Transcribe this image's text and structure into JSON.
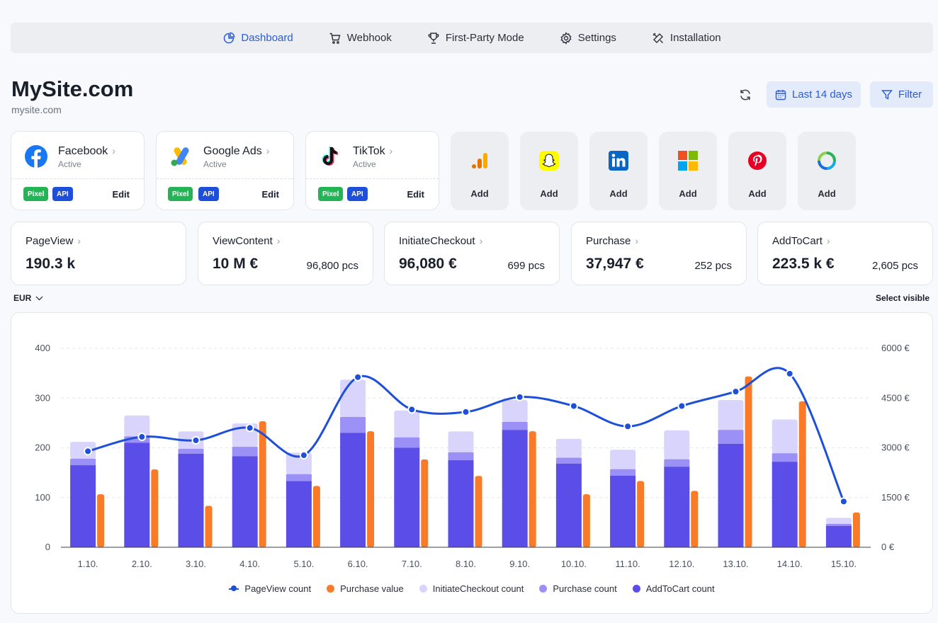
{
  "nav": {
    "items": [
      {
        "label": "Dashboard",
        "icon": "pie-chart-icon",
        "active": true
      },
      {
        "label": "Webhook",
        "icon": "cart-icon"
      },
      {
        "label": "First-Party Mode",
        "icon": "trophy-icon"
      },
      {
        "label": "Settings",
        "icon": "gear-icon"
      },
      {
        "label": "Installation",
        "icon": "tools-icon"
      }
    ]
  },
  "site": {
    "title": "MySite.com",
    "url": "mysite.com"
  },
  "toolbar": {
    "date_range": "Last 14 days",
    "filter": "Filter"
  },
  "integrations": [
    {
      "name": "Facebook",
      "status": "Active",
      "badges": [
        "Pixel",
        "API"
      ],
      "action": "Edit"
    },
    {
      "name": "Google Ads",
      "status": "Active",
      "badges": [
        "Pixel",
        "API"
      ],
      "action": "Edit"
    },
    {
      "name": "TikTok",
      "status": "Active",
      "badges": [
        "Pixel",
        "API"
      ],
      "action": "Edit"
    }
  ],
  "add_integrations": [
    {
      "icon": "google-analytics-icon",
      "label": "Add"
    },
    {
      "icon": "snapchat-icon",
      "label": "Add"
    },
    {
      "icon": "linkedin-icon",
      "label": "Add"
    },
    {
      "icon": "microsoft-icon",
      "label": "Add"
    },
    {
      "icon": "pinterest-icon",
      "label": "Add"
    },
    {
      "icon": "ring-logo-icon",
      "label": "Add"
    }
  ],
  "metrics": [
    {
      "name": "PageView",
      "value": "190.3 k",
      "pcs": ""
    },
    {
      "name": "ViewContent",
      "value": "10 M €",
      "pcs": "96,800 pcs"
    },
    {
      "name": "InitiateCheckout",
      "value": "96,080 €",
      "pcs": "699 pcs"
    },
    {
      "name": "Purchase",
      "value": "37,947 €",
      "pcs": "252 pcs"
    },
    {
      "name": "AddToCart",
      "value": "223.5 k €",
      "pcs": "2,605 pcs"
    }
  ],
  "chart_controls": {
    "currency": "EUR",
    "select_visible": "Select visible"
  },
  "chart_data": {
    "type": "bar",
    "categories": [
      "1.10.",
      "2.10.",
      "3.10.",
      "4.10.",
      "5.10.",
      "6.10.",
      "7.10.",
      "8.10.",
      "9.10.",
      "10.10.",
      "11.10.",
      "12.10.",
      "13.10.",
      "14.10.",
      "15.10."
    ],
    "y_left": {
      "ticks": [
        "0",
        "100",
        "200",
        "300",
        "400"
      ],
      "range": [
        0,
        400
      ]
    },
    "y_right": {
      "ticks": [
        "0 €",
        "1500 €",
        "3000 €",
        "4500 €",
        "6000 €"
      ],
      "range": [
        0,
        6000
      ]
    },
    "grid": true,
    "legend_position": "bottom",
    "series": [
      {
        "name": "PageView count",
        "kind": "line",
        "axis": "left",
        "color": "#1d4fd8",
        "values": [
          193,
          222,
          215,
          240,
          185,
          342,
          277,
          272,
          302,
          284,
          243,
          284,
          313,
          349,
          92
        ]
      },
      {
        "name": "Purchase value",
        "kind": "bar",
        "axis": "right",
        "color": "#f97b2a",
        "values": [
          1600,
          2350,
          1250,
          3800,
          1850,
          3500,
          2650,
          2150,
          3500,
          1600,
          2000,
          1700,
          5150,
          4400,
          1050
        ]
      },
      {
        "name": "InitiateCheckout count",
        "kind": "stacked",
        "axis": "left",
        "color": "#d8d4fb",
        "values": [
          212,
          265,
          233,
          249,
          190,
          337,
          275,
          233,
          296,
          218,
          196,
          235,
          296,
          257,
          59
        ]
      },
      {
        "name": "Purchase count",
        "kind": "stacked",
        "axis": "left",
        "color": "#9a90f5",
        "values": [
          178,
          223,
          198,
          202,
          147,
          262,
          221,
          191,
          252,
          180,
          157,
          177,
          236,
          189,
          47
        ]
      },
      {
        "name": "AddToCart count",
        "kind": "stacked",
        "axis": "left",
        "color": "#5b4de8",
        "values": [
          165,
          210,
          188,
          183,
          133,
          230,
          200,
          175,
          236,
          168,
          144,
          162,
          208,
          172,
          43
        ]
      }
    ]
  }
}
